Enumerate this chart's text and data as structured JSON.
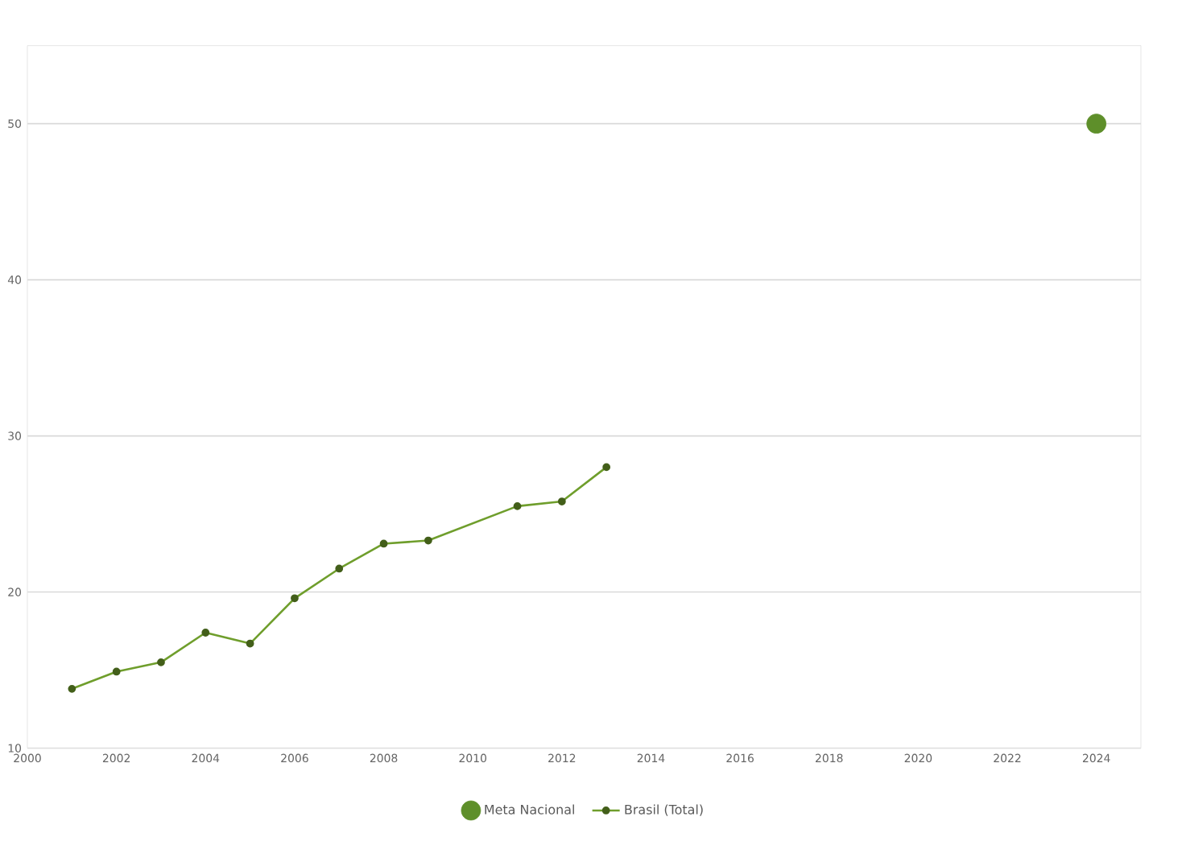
{
  "chart_data": {
    "type": "line",
    "xlim": [
      2000,
      2025
    ],
    "ylim": [
      10,
      55
    ],
    "xticks": [
      2000,
      2002,
      2004,
      2006,
      2008,
      2010,
      2012,
      2014,
      2016,
      2018,
      2020,
      2022,
      2024
    ],
    "yticks": [
      10,
      20,
      30,
      40,
      50
    ],
    "grid": "y",
    "legend": "bottom",
    "series": [
      {
        "name": "Meta Nacional",
        "type": "scatter",
        "marker": "circle",
        "color": "#5e8f2a",
        "x": [
          2024
        ],
        "values": [
          50
        ]
      },
      {
        "name": "Brasil (Total)",
        "marker": "circle",
        "color": "#6f9e2c",
        "x": [
          2001,
          2002,
          2003,
          2004,
          2005,
          2006,
          2007,
          2008,
          2009,
          2011,
          2012,
          2013
        ],
        "values": [
          13.8,
          14.9,
          15.5,
          17.4,
          16.7,
          19.6,
          21.5,
          23.1,
          23.3,
          25.5,
          25.8,
          28.0
        ]
      }
    ]
  }
}
